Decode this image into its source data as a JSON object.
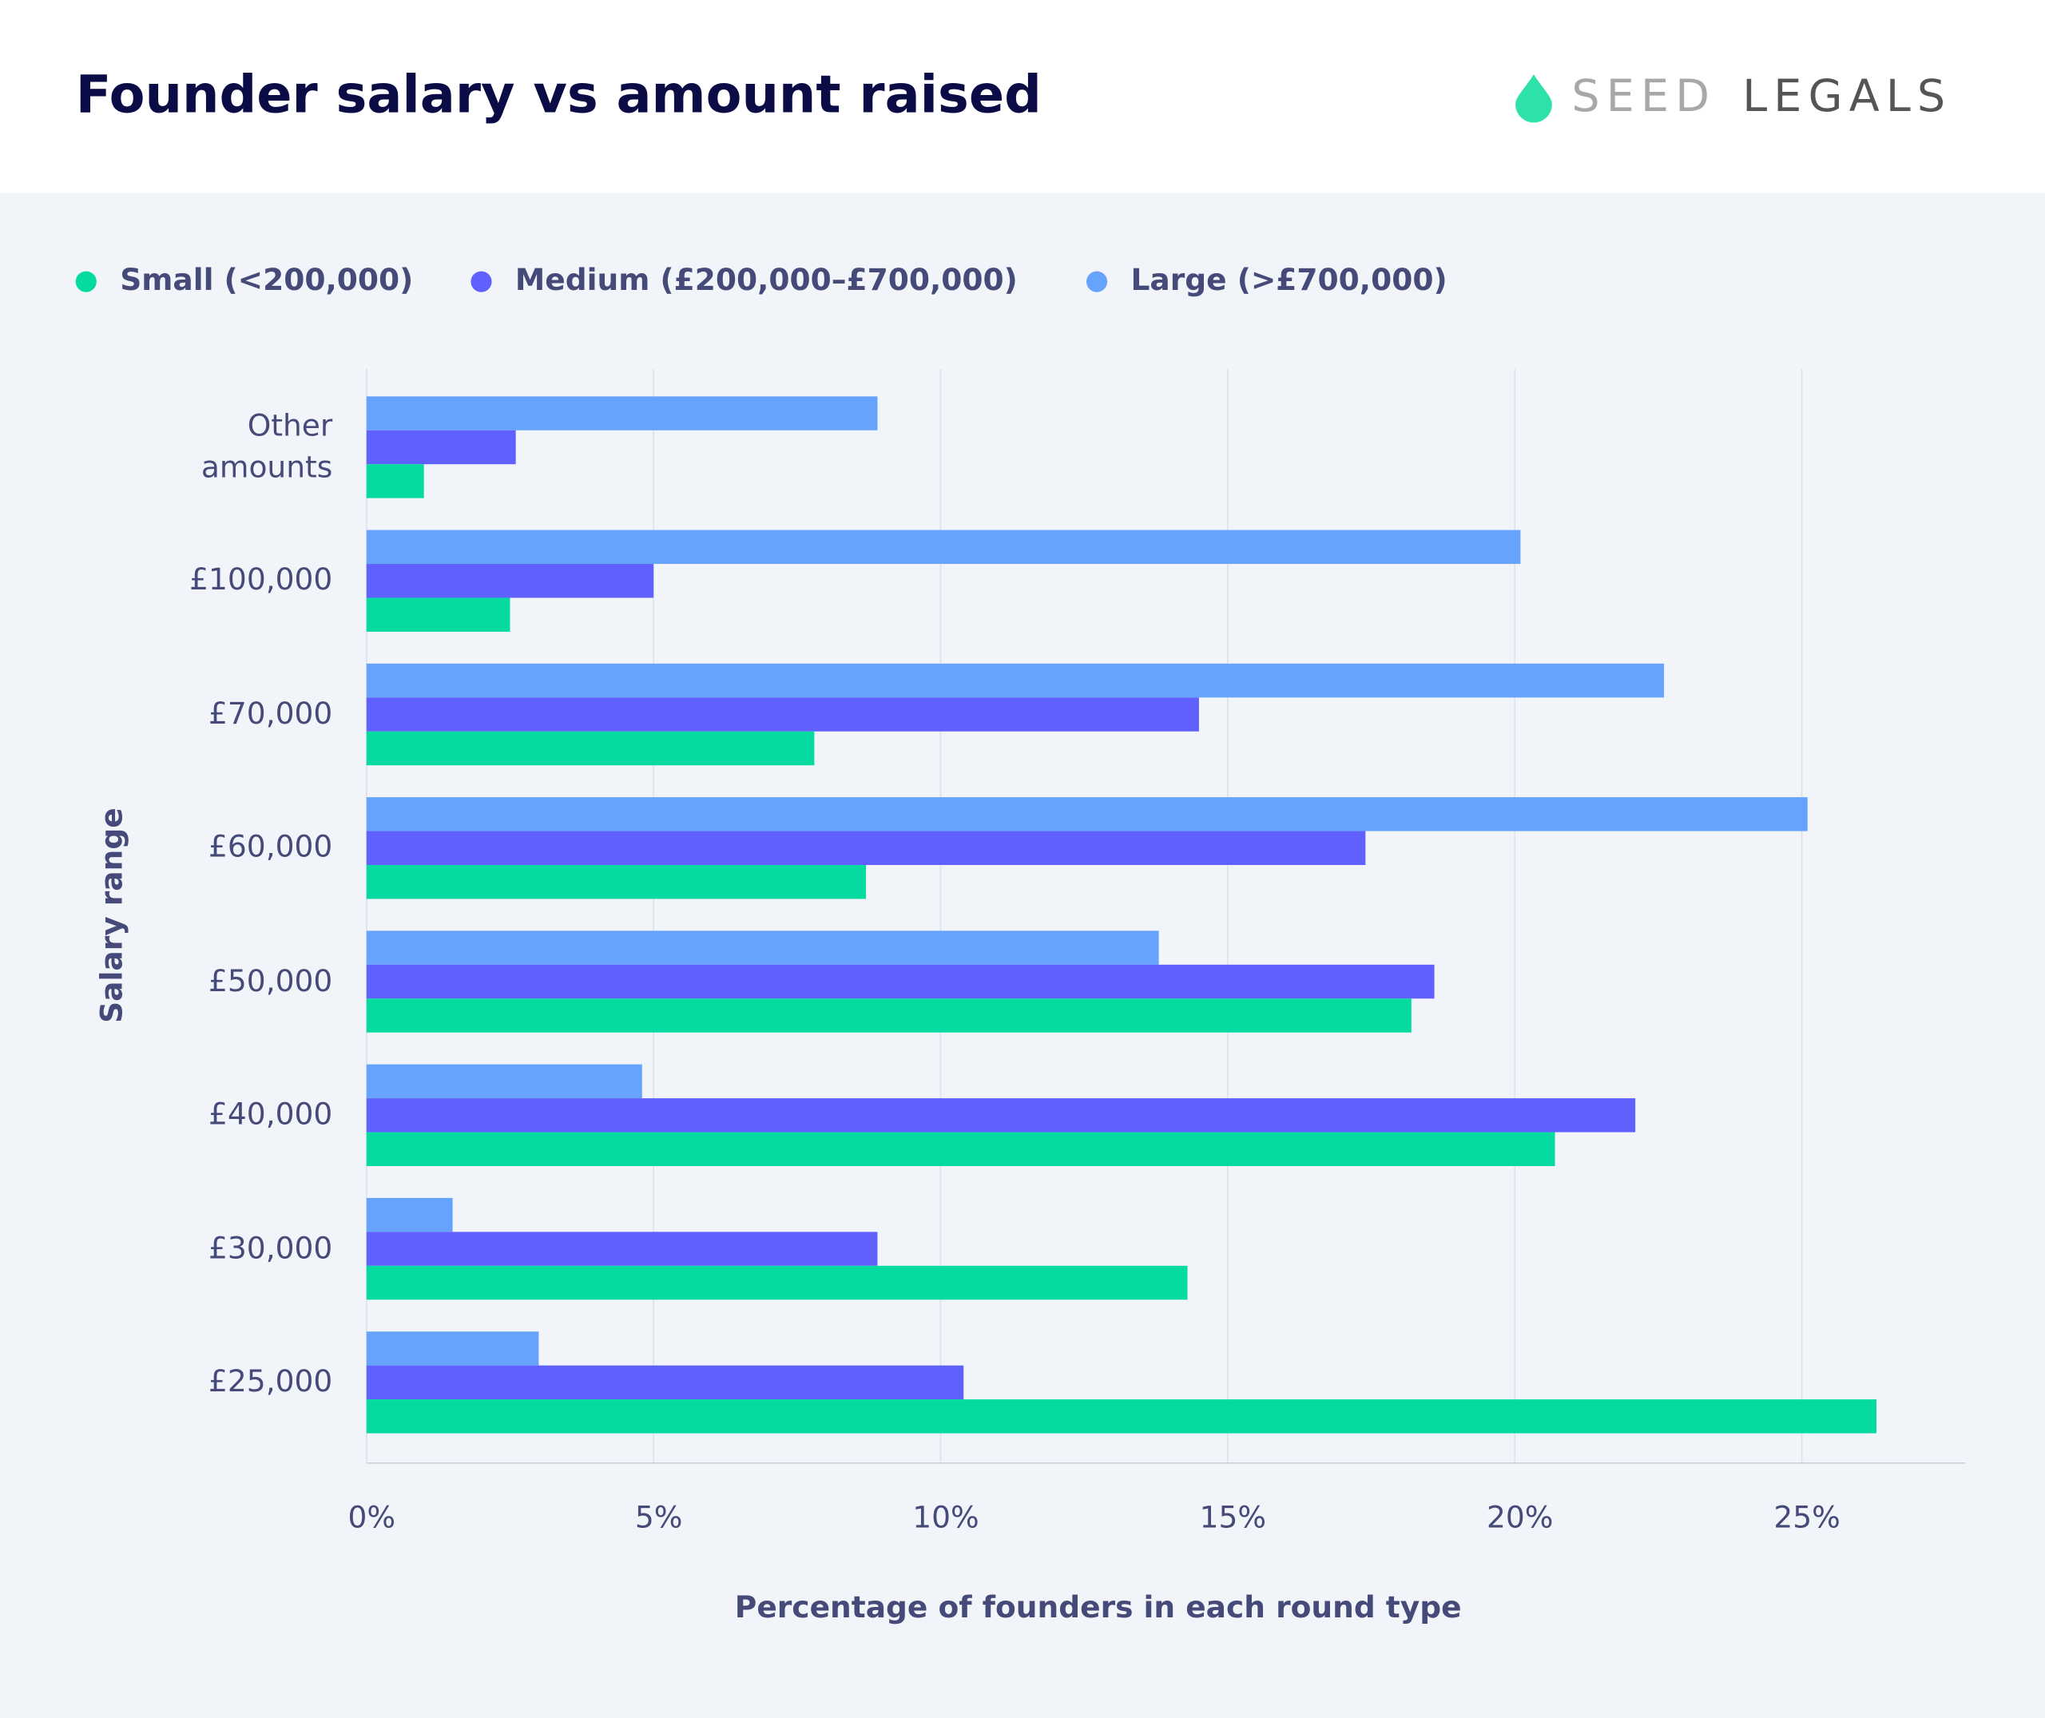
{
  "chart_data": {
    "type": "bar",
    "orientation": "horizontal",
    "title": "Founder salary vs amount raised",
    "logo": [
      "SEED",
      "LEGALS"
    ],
    "x_label": "Percentage of founders in each round type",
    "y_label": "Salary range",
    "categories": [
      "Other amounts",
      "£100,000",
      "£70,000",
      "£60,000",
      "£50,000",
      "£40,000",
      "£30,000",
      "£25,000"
    ],
    "series": [
      {
        "name": "Small (<200,000)",
        "color": "#05dba0",
        "values": [
          1.0,
          2.5,
          7.8,
          8.7,
          18.2,
          20.7,
          14.3,
          26.3
        ]
      },
      {
        "name": "Medium (£200,000–£700,000)",
        "color": "#6060ff",
        "values": [
          2.6,
          5.0,
          14.5,
          17.4,
          18.6,
          22.1,
          8.9,
          10.4
        ]
      },
      {
        "name": "Large (>£700,000)",
        "color": "#66a3fd",
        "values": [
          8.9,
          20.1,
          22.6,
          25.1,
          13.8,
          4.8,
          1.5,
          3.0
        ]
      }
    ],
    "xlim": [
      0,
      27.85
    ],
    "xticks": [
      {
        "value": 0,
        "label": "0%"
      },
      {
        "value": 5,
        "label": "5%"
      },
      {
        "value": 10,
        "label": "10%"
      },
      {
        "value": 15,
        "label": "15%"
      },
      {
        "value": 20,
        "label": "20%"
      },
      {
        "value": 25,
        "label": "25%"
      }
    ],
    "grid": true
  }
}
